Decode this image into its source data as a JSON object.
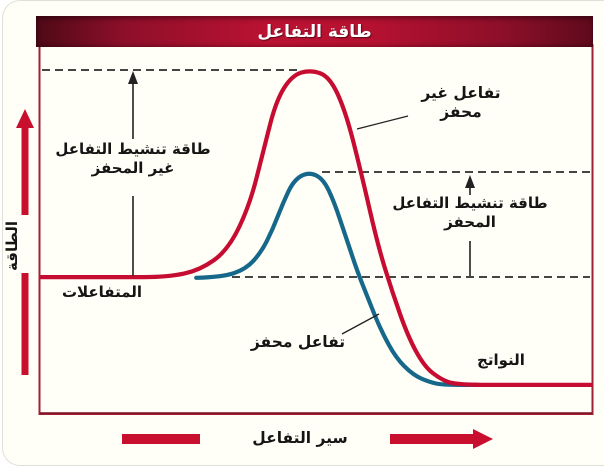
{
  "title": "طاقة التفاعل",
  "axes": {
    "y_label": "الطاقة",
    "x_label": "سير التفاعل"
  },
  "labels": {
    "uncatalyzed_curve": "تفاعل غير محفز",
    "catalyzed_curve": "تفاعل محفز",
    "reactants": "المتفاعلات",
    "products": "النواتج",
    "activation_uncatalyzed_line1": "طاقة تنشيط التفاعل",
    "activation_uncatalyzed_line2": "غير المحفز",
    "activation_catalyzed_line1": "طاقة تنشيط التفاعل",
    "activation_catalyzed_line2": "المحفز"
  },
  "colors": {
    "uncatalyzed_curve": "#c60c30",
    "catalyzed_curve": "#16688a",
    "title_bar_mid": "#bb1232",
    "title_bar_dark": "#4e0916",
    "axis_arrow": "#c8102e",
    "plot_border": "#9e2235",
    "dashed_line": "#2b2b2b",
    "background": "#fffef7",
    "text": "#151515"
  },
  "chart_data": {
    "type": "line",
    "title": "طاقة التفاعل",
    "xlabel": "سير التفاعل",
    "ylabel": "الطاقة",
    "grid": false,
    "legend_position": "none",
    "axis_note": "qualitative axes (no numeric ticks); energy values normalized 0-1 of plot height, progress normalized 0-1 of plot width",
    "levels_relative": {
      "reactants": 0.372,
      "products": 0.079,
      "uncatalyzed_peak": 0.935,
      "catalyzed_peak": 0.658
    },
    "annotations": [
      "طاقة تنشيط التفاعل غير المحفز",
      "طاقة تنشيط التفاعل المحفز",
      "المتفاعلات",
      "النواتج"
    ],
    "series": [
      {
        "name": "تفاعل غير محفز",
        "color": "#c60c30",
        "points": [
          [
            0.002,
            0.372
          ],
          [
            0.145,
            0.372
          ],
          [
            0.232,
            0.372
          ],
          [
            0.29,
            0.391
          ],
          [
            0.341,
            0.446
          ],
          [
            0.38,
            0.568
          ],
          [
            0.406,
            0.723
          ],
          [
            0.428,
            0.853
          ],
          [
            0.457,
            0.921
          ],
          [
            0.491,
            0.935
          ],
          [
            0.525,
            0.916
          ],
          [
            0.554,
            0.821
          ],
          [
            0.583,
            0.649
          ],
          [
            0.612,
            0.459
          ],
          [
            0.638,
            0.332
          ],
          [
            0.667,
            0.209
          ],
          [
            0.696,
            0.13
          ],
          [
            0.725,
            0.095
          ],
          [
            0.754,
            0.079
          ],
          [
            0.87,
            0.079
          ],
          [
            0.998,
            0.079
          ]
        ]
      },
      {
        "name": "تفاعل محفز",
        "color": "#16688a",
        "points": [
          [
            0.283,
            0.37
          ],
          [
            0.33,
            0.372
          ],
          [
            0.373,
            0.394
          ],
          [
            0.4,
            0.438
          ],
          [
            0.422,
            0.503
          ],
          [
            0.44,
            0.573
          ],
          [
            0.46,
            0.636
          ],
          [
            0.487,
            0.658
          ],
          [
            0.513,
            0.639
          ],
          [
            0.533,
            0.576
          ],
          [
            0.553,
            0.486
          ],
          [
            0.574,
            0.391
          ],
          [
            0.594,
            0.315
          ],
          [
            0.618,
            0.226
          ],
          [
            0.645,
            0.152
          ],
          [
            0.676,
            0.106
          ],
          [
            0.705,
            0.087
          ],
          [
            0.73,
            0.079
          ],
          [
            0.793,
            0.079
          ]
        ]
      }
    ]
  }
}
